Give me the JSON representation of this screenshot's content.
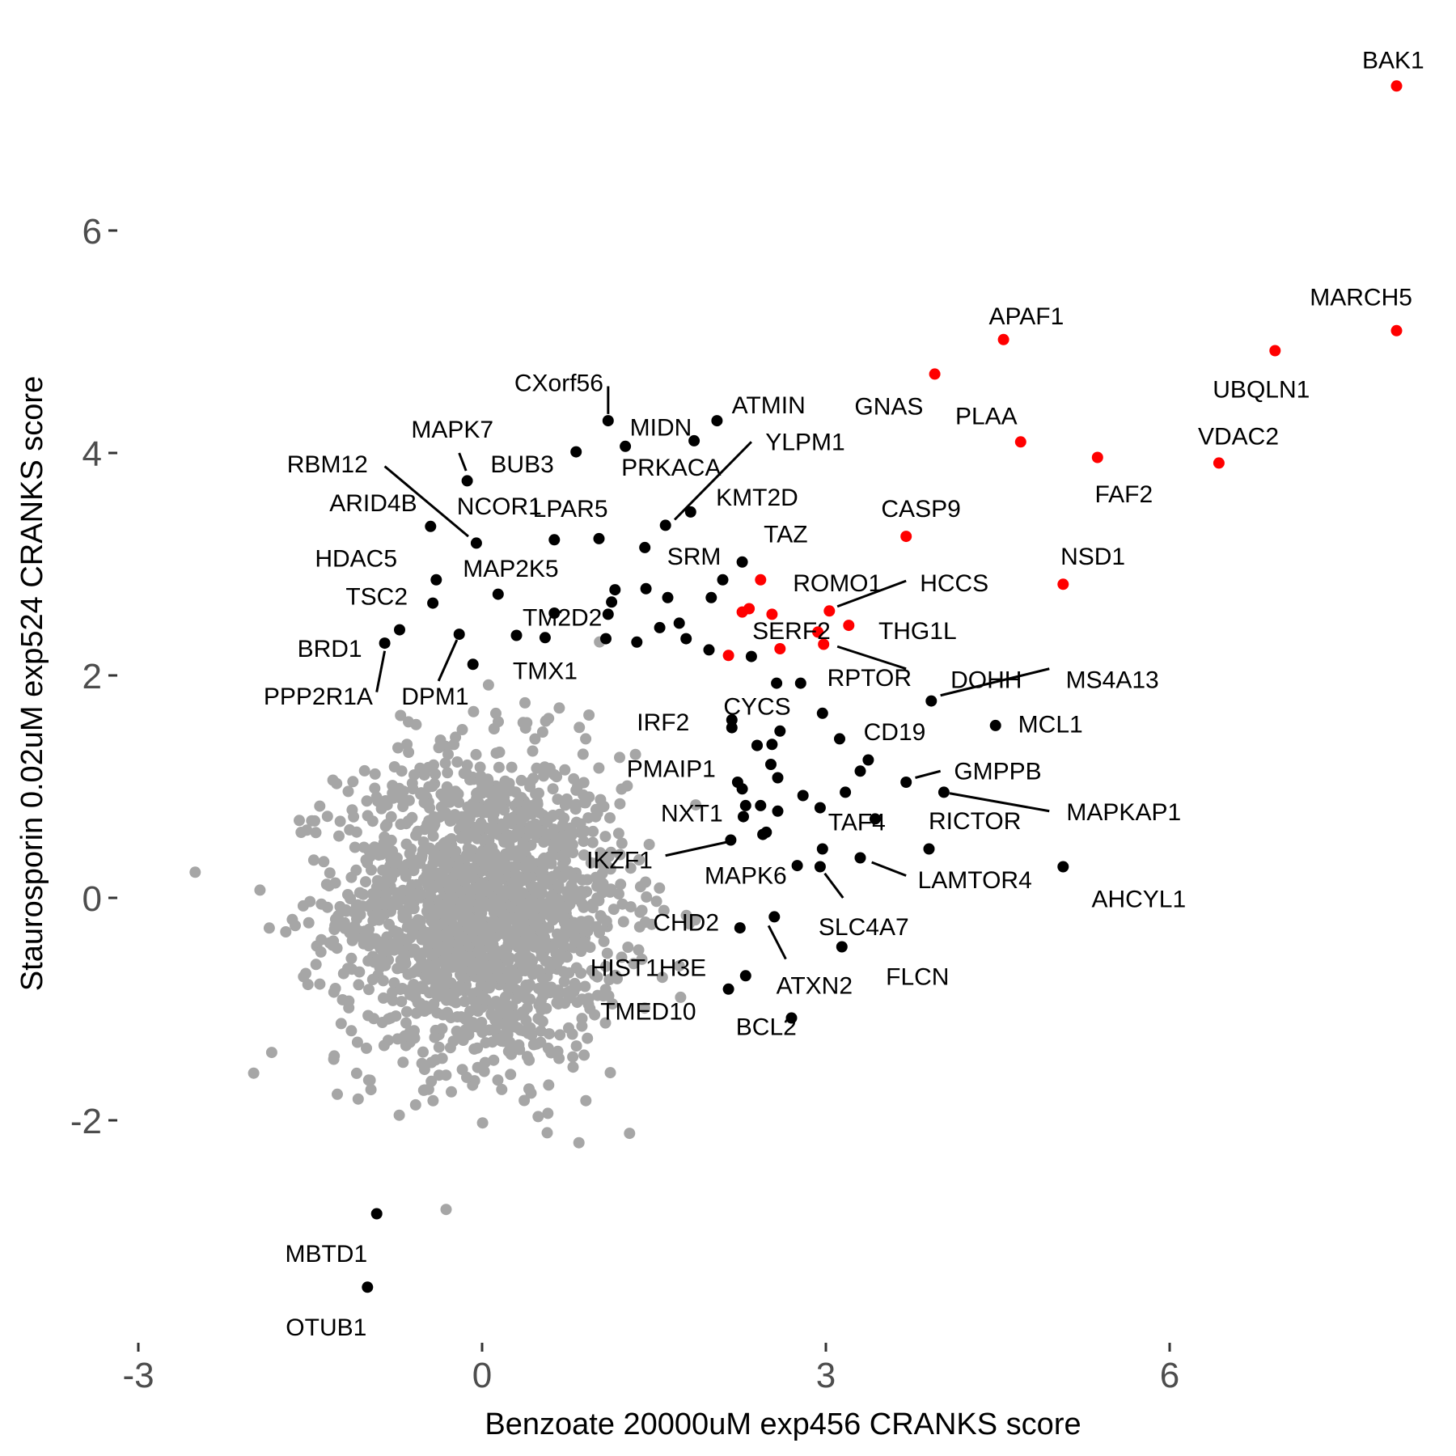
{
  "chart_data": {
    "type": "scatter",
    "title": "",
    "xlabel": "Benzoate 20000uM exp456 CRANKS score",
    "ylabel": "Staurosporin 0.02uM exp524 CRANKS score",
    "xlim": [
      -3.0,
      8.2
    ],
    "ylim": [
      -3.9,
      7.5
    ],
    "x_ticks": [
      -3,
      0,
      3,
      6
    ],
    "x_tick_labels": [
      "-3",
      "0",
      "3",
      "6"
    ],
    "y_ticks": [
      -2,
      0,
      2,
      4,
      6
    ],
    "y_tick_labels": [
      "-2",
      "0",
      "2",
      "4",
      "6"
    ],
    "grid": false,
    "legend": "none",
    "colors": {
      "background": "#cccccc",
      "hit": "#000000",
      "highlight": "#ff0000"
    },
    "background_cloud": {
      "color": "#a6a6a6",
      "approx_count": 1800,
      "center": [
        0.0,
        -0.1
      ],
      "x_range": [
        -2.6,
        1.9
      ],
      "y_range": [
        -2.9,
        2.5
      ],
      "description_note": ""
    },
    "points": [
      {
        "gene": "BAK1",
        "x": 7.98,
        "y": 7.3,
        "color": "red"
      },
      {
        "gene": "MARCH5",
        "x": 7.98,
        "y": 5.1,
        "color": "red"
      },
      {
        "gene": "UBQLN1",
        "x": 6.92,
        "y": 4.92,
        "color": "red"
      },
      {
        "gene": "APAF1",
        "x": 4.55,
        "y": 5.02,
        "color": "red"
      },
      {
        "gene": "GNAS",
        "x": 3.95,
        "y": 4.71,
        "color": "red"
      },
      {
        "gene": "PLAA",
        "x": 4.7,
        "y": 4.1,
        "color": "red"
      },
      {
        "gene": "FAF2",
        "x": 5.37,
        "y": 3.96,
        "color": "red"
      },
      {
        "gene": "VDAC2",
        "x": 6.43,
        "y": 3.91,
        "color": "red"
      },
      {
        "gene": "CASP9",
        "x": 3.7,
        "y": 3.25,
        "color": "red"
      },
      {
        "gene": "NSD1",
        "x": 5.07,
        "y": 2.82,
        "color": "red"
      },
      {
        "gene": "ROMO1",
        "x": 2.43,
        "y": 2.86,
        "color": "red"
      },
      {
        "gene": "HCCS",
        "x": 3.03,
        "y": 2.58,
        "color": "red"
      },
      {
        "gene": "THG1L",
        "x": 3.2,
        "y": 2.45,
        "color": "red"
      },
      {
        "gene": "SERF2",
        "x": 2.6,
        "y": 2.24,
        "color": "red"
      },
      {
        "gene": "DOHH",
        "x": 2.98,
        "y": 2.28,
        "color": "red"
      },
      {
        "gene": "",
        "x": 2.27,
        "y": 2.57,
        "color": "red"
      },
      {
        "gene": "",
        "x": 2.33,
        "y": 2.6,
        "color": "red"
      },
      {
        "gene": "",
        "x": 2.53,
        "y": 2.55,
        "color": "red"
      },
      {
        "gene": "",
        "x": 2.93,
        "y": 2.39,
        "color": "red"
      },
      {
        "gene": "",
        "x": 2.15,
        "y": 2.18,
        "color": "red"
      },
      {
        "gene": "MAPK7",
        "x": -0.13,
        "y": 3.75,
        "color": "black"
      },
      {
        "gene": "CXorf56",
        "x": 1.1,
        "y": 4.29,
        "color": "black"
      },
      {
        "gene": "MIDN",
        "x": 1.25,
        "y": 4.06,
        "color": "black"
      },
      {
        "gene": "ATMIN",
        "x": 2.05,
        "y": 4.29,
        "color": "black"
      },
      {
        "gene": "BUB3",
        "x": 0.82,
        "y": 4.01,
        "color": "black"
      },
      {
        "gene": "PRKACA",
        "x": 1.85,
        "y": 4.11,
        "color": "black"
      },
      {
        "gene": "YLPM1",
        "x": 1.6,
        "y": 3.35,
        "color": "black"
      },
      {
        "gene": "KMT2D",
        "x": 1.82,
        "y": 3.47,
        "color": "black"
      },
      {
        "gene": "RBM12",
        "x": -0.05,
        "y": 3.19,
        "color": "black"
      },
      {
        "gene": "ARID4B",
        "x": -0.45,
        "y": 3.34,
        "color": "black"
      },
      {
        "gene": "NCOR1",
        "x": 0.63,
        "y": 3.22,
        "color": "black"
      },
      {
        "gene": "LPAR5",
        "x": 1.02,
        "y": 3.23,
        "color": "black"
      },
      {
        "gene": "SRM",
        "x": 1.42,
        "y": 3.15,
        "color": "black"
      },
      {
        "gene": "TAZ",
        "x": 2.27,
        "y": 3.02,
        "color": "black"
      },
      {
        "gene": "HDAC5",
        "x": -0.4,
        "y": 2.86,
        "color": "black"
      },
      {
        "gene": "MAP2K5",
        "x": 0.14,
        "y": 2.73,
        "color": "black"
      },
      {
        "gene": "TSC2",
        "x": -0.43,
        "y": 2.65,
        "color": "black"
      },
      {
        "gene": "TM2D2",
        "x": 0.63,
        "y": 2.56,
        "color": "black"
      },
      {
        "gene": "BRD1",
        "x": -0.85,
        "y": 2.29,
        "color": "black"
      },
      {
        "gene": "PPP2R1A",
        "x": -0.72,
        "y": 2.41,
        "color": "black"
      },
      {
        "gene": "DPM1",
        "x": -0.2,
        "y": 2.37,
        "color": "black"
      },
      {
        "gene": "TMX1",
        "x": -0.08,
        "y": 2.1,
        "color": "black"
      },
      {
        "gene": "RPTOR",
        "x": 2.78,
        "y": 1.93,
        "color": "black"
      },
      {
        "gene": "MS4A13",
        "x": 3.92,
        "y": 1.77,
        "color": "black"
      },
      {
        "gene": "CYCS",
        "x": 2.57,
        "y": 1.93,
        "color": "black"
      },
      {
        "gene": "IRF2",
        "x": 2.18,
        "y": 1.6,
        "color": "black"
      },
      {
        "gene": "MCL1",
        "x": 4.48,
        "y": 1.55,
        "color": "black"
      },
      {
        "gene": "CD19",
        "x": 3.12,
        "y": 1.43,
        "color": "black"
      },
      {
        "gene": "PMAIP1",
        "x": 2.4,
        "y": 1.37,
        "color": "black"
      },
      {
        "gene": "GMPPB",
        "x": 3.7,
        "y": 1.04,
        "color": "black"
      },
      {
        "gene": "MAPKAP1",
        "x": 4.03,
        "y": 0.95,
        "color": "black"
      },
      {
        "gene": "NXT1",
        "x": 2.23,
        "y": 1.04,
        "color": "black"
      },
      {
        "gene": "TAF4",
        "x": 2.95,
        "y": 0.81,
        "color": "black"
      },
      {
        "gene": "RICTOR",
        "x": 3.43,
        "y": 0.71,
        "color": "black"
      },
      {
        "gene": "IKZF1",
        "x": 2.17,
        "y": 0.52,
        "color": "black"
      },
      {
        "gene": "MAPK6",
        "x": 2.45,
        "y": 0.57,
        "color": "black"
      },
      {
        "gene": "LAMTOR4",
        "x": 3.3,
        "y": 0.36,
        "color": "black"
      },
      {
        "gene": "AHCYL1",
        "x": 5.07,
        "y": 0.28,
        "color": "black"
      },
      {
        "gene": "",
        "x": 3.9,
        "y": 0.44,
        "color": "black"
      },
      {
        "gene": "",
        "x": 2.97,
        "y": 0.44,
        "color": "black"
      },
      {
        "gene": "",
        "x": 2.75,
        "y": 0.29,
        "color": "black"
      },
      {
        "gene": "SLC4A7",
        "x": 2.95,
        "y": 0.28,
        "color": "black"
      },
      {
        "gene": "CHD2",
        "x": 2.55,
        "y": -0.17,
        "color": "black"
      },
      {
        "gene": "FLCN",
        "x": 3.14,
        "y": -0.44,
        "color": "black"
      },
      {
        "gene": "HIST1H3E",
        "x": 2.25,
        "y": -0.27,
        "color": "black"
      },
      {
        "gene": "ATXN2",
        "x": 2.3,
        "y": -0.7,
        "color": "black"
      },
      {
        "gene": "TMED10",
        "x": 2.15,
        "y": -0.82,
        "color": "black"
      },
      {
        "gene": "BCL2",
        "x": 2.7,
        "y": -1.08,
        "color": "black"
      },
      {
        "gene": "MBTD1",
        "x": -0.92,
        "y": -2.84,
        "color": "black"
      },
      {
        "gene": "OTUB1",
        "x": -1.0,
        "y": -3.5,
        "color": "black"
      },
      {
        "gene": "",
        "x": 1.13,
        "y": 2.66,
        "color": "black"
      },
      {
        "gene": "",
        "x": 1.16,
        "y": 2.77,
        "color": "black"
      },
      {
        "gene": "",
        "x": 1.43,
        "y": 2.78,
        "color": "black"
      },
      {
        "gene": "",
        "x": 1.62,
        "y": 2.7,
        "color": "black"
      },
      {
        "gene": "",
        "x": 2.0,
        "y": 2.7,
        "color": "black"
      },
      {
        "gene": "",
        "x": 2.1,
        "y": 2.86,
        "color": "black"
      },
      {
        "gene": "",
        "x": 0.3,
        "y": 2.36,
        "color": "black"
      },
      {
        "gene": "",
        "x": 0.55,
        "y": 2.34,
        "color": "black"
      },
      {
        "gene": "",
        "x": 1.08,
        "y": 2.33,
        "color": "black"
      },
      {
        "gene": "",
        "x": 1.35,
        "y": 2.3,
        "color": "black"
      },
      {
        "gene": "",
        "x": 1.55,
        "y": 2.43,
        "color": "black"
      },
      {
        "gene": "",
        "x": 1.72,
        "y": 2.47,
        "color": "black"
      },
      {
        "gene": "",
        "x": 1.78,
        "y": 2.33,
        "color": "black"
      },
      {
        "gene": "",
        "x": 1.98,
        "y": 2.23,
        "color": "black"
      },
      {
        "gene": "",
        "x": 2.35,
        "y": 2.17,
        "color": "black"
      },
      {
        "gene": "",
        "x": 1.1,
        "y": 2.55,
        "color": "black"
      },
      {
        "gene": "",
        "x": 2.18,
        "y": 1.53,
        "color": "black"
      },
      {
        "gene": "",
        "x": 2.4,
        "y": 1.37,
        "color": "black"
      },
      {
        "gene": "",
        "x": 2.6,
        "y": 1.5,
        "color": "black"
      },
      {
        "gene": "",
        "x": 2.53,
        "y": 1.38,
        "color": "black"
      },
      {
        "gene": "",
        "x": 2.97,
        "y": 1.66,
        "color": "black"
      },
      {
        "gene": "",
        "x": 3.37,
        "y": 1.24,
        "color": "black"
      },
      {
        "gene": "",
        "x": 3.3,
        "y": 1.14,
        "color": "black"
      },
      {
        "gene": "",
        "x": 2.52,
        "y": 1.2,
        "color": "black"
      },
      {
        "gene": "",
        "x": 2.58,
        "y": 1.08,
        "color": "black"
      },
      {
        "gene": "",
        "x": 2.27,
        "y": 0.98,
        "color": "black"
      },
      {
        "gene": "",
        "x": 2.3,
        "y": 0.83,
        "color": "black"
      },
      {
        "gene": "",
        "x": 2.43,
        "y": 0.83,
        "color": "black"
      },
      {
        "gene": "",
        "x": 2.58,
        "y": 0.78,
        "color": "black"
      },
      {
        "gene": "",
        "x": 2.8,
        "y": 0.92,
        "color": "black"
      },
      {
        "gene": "",
        "x": 3.17,
        "y": 0.95,
        "color": "black"
      },
      {
        "gene": "",
        "x": 2.48,
        "y": 0.59,
        "color": "black"
      },
      {
        "gene": "",
        "x": 2.28,
        "y": 0.73,
        "color": "black"
      }
    ],
    "labels": [
      {
        "text": "BAK1",
        "x": 7.95,
        "y": 7.53
      },
      {
        "text": "MARCH5",
        "x": 7.67,
        "y": 5.4
      },
      {
        "text": "UBQLN1",
        "x": 6.8,
        "y": 4.57
      },
      {
        "text": "APAF1",
        "x": 4.75,
        "y": 5.23
      },
      {
        "text": "GNAS",
        "x": 3.55,
        "y": 4.42
      },
      {
        "text": "PLAA",
        "x": 4.4,
        "y": 4.33
      },
      {
        "text": "FAF2",
        "x": 5.6,
        "y": 3.63
      },
      {
        "text": "VDAC2",
        "x": 6.6,
        "y": 4.15
      },
      {
        "text": "CASP9",
        "x": 3.83,
        "y": 3.5
      },
      {
        "text": "NSD1",
        "x": 5.33,
        "y": 3.07
      },
      {
        "text": "ROMO1",
        "x": 3.1,
        "y": 2.83
      },
      {
        "text": "HCCS",
        "x": 4.12,
        "y": 2.83
      },
      {
        "text": "THG1L",
        "x": 3.8,
        "y": 2.4
      },
      {
        "text": "SERF2",
        "x": 2.7,
        "y": 2.4
      },
      {
        "text": "DOHH",
        "x": 4.4,
        "y": 1.96
      },
      {
        "text": "MS4A13",
        "x": 5.5,
        "y": 1.96
      },
      {
        "text": "CXorf56",
        "x": 0.67,
        "y": 4.63
      },
      {
        "text": "MIDN",
        "x": 1.56,
        "y": 4.23
      },
      {
        "text": "ATMIN",
        "x": 2.5,
        "y": 4.43
      },
      {
        "text": "MAPK7",
        "x": -0.26,
        "y": 4.21
      },
      {
        "text": "BUB3",
        "x": 0.35,
        "y": 3.9
      },
      {
        "text": "PRKACA",
        "x": 1.65,
        "y": 3.87
      },
      {
        "text": "YLPM1",
        "x": 2.82,
        "y": 4.1
      },
      {
        "text": "KMT2D",
        "x": 2.4,
        "y": 3.6
      },
      {
        "text": "RBM12",
        "x": -1.35,
        "y": 3.9
      },
      {
        "text": "ARID4B",
        "x": -0.95,
        "y": 3.55
      },
      {
        "text": "NCOR1",
        "x": 0.15,
        "y": 3.52
      },
      {
        "text": "LPAR5",
        "x": 0.77,
        "y": 3.5
      },
      {
        "text": "HDAC5",
        "x": -1.1,
        "y": 3.05
      },
      {
        "text": "MAP2K5",
        "x": 0.25,
        "y": 2.96
      },
      {
        "text": "SRM",
        "x": 1.85,
        "y": 3.07
      },
      {
        "text": "TAZ",
        "x": 2.65,
        "y": 3.27
      },
      {
        "text": "TSC2",
        "x": -0.92,
        "y": 2.71
      },
      {
        "text": "TM2D2",
        "x": 0.7,
        "y": 2.52
      },
      {
        "text": "BRD1",
        "x": -1.33,
        "y": 2.24
      },
      {
        "text": "PPP2R1A",
        "x": -1.43,
        "y": 1.81
      },
      {
        "text": "DPM1",
        "x": -0.41,
        "y": 1.81
      },
      {
        "text": "TMX1",
        "x": 0.55,
        "y": 2.04
      },
      {
        "text": "RPTOR",
        "x": 3.38,
        "y": 1.98
      },
      {
        "text": "CYCS",
        "x": 2.4,
        "y": 1.72
      },
      {
        "text": "IRF2",
        "x": 1.58,
        "y": 1.58
      },
      {
        "text": "MCL1",
        "x": 4.96,
        "y": 1.56
      },
      {
        "text": "CD19",
        "x": 3.6,
        "y": 1.49
      },
      {
        "text": "PMAIP1",
        "x": 1.65,
        "y": 1.16
      },
      {
        "text": "GMPPB",
        "x": 4.5,
        "y": 1.14
      },
      {
        "text": "MAPKAP1",
        "x": 5.6,
        "y": 0.77
      },
      {
        "text": "NXT1",
        "x": 1.83,
        "y": 0.76
      },
      {
        "text": "TAF4",
        "x": 3.27,
        "y": 0.68
      },
      {
        "text": "RICTOR",
        "x": 4.3,
        "y": 0.69
      },
      {
        "text": "IKZF1",
        "x": 1.2,
        "y": 0.34
      },
      {
        "text": "MAPK6",
        "x": 2.3,
        "y": 0.2
      },
      {
        "text": "LAMTOR4",
        "x": 4.3,
        "y": 0.16
      },
      {
        "text": "AHCYL1",
        "x": 5.73,
        "y": -0.01
      },
      {
        "text": "CHD2",
        "x": 1.78,
        "y": -0.22
      },
      {
        "text": "SLC4A7",
        "x": 3.33,
        "y": -0.26
      },
      {
        "text": "FLCN",
        "x": 3.8,
        "y": -0.71
      },
      {
        "text": "HIST1H3E",
        "x": 1.45,
        "y": -0.63
      },
      {
        "text": "ATXN2",
        "x": 2.9,
        "y": -0.79
      },
      {
        "text": "TMED10",
        "x": 1.45,
        "y": -1.02
      },
      {
        "text": "BCL2",
        "x": 2.48,
        "y": -1.16
      },
      {
        "text": "MBTD1",
        "x": -1.36,
        "y": -3.2
      },
      {
        "text": "OTUB1",
        "x": -1.36,
        "y": -3.86
      }
    ]
  }
}
